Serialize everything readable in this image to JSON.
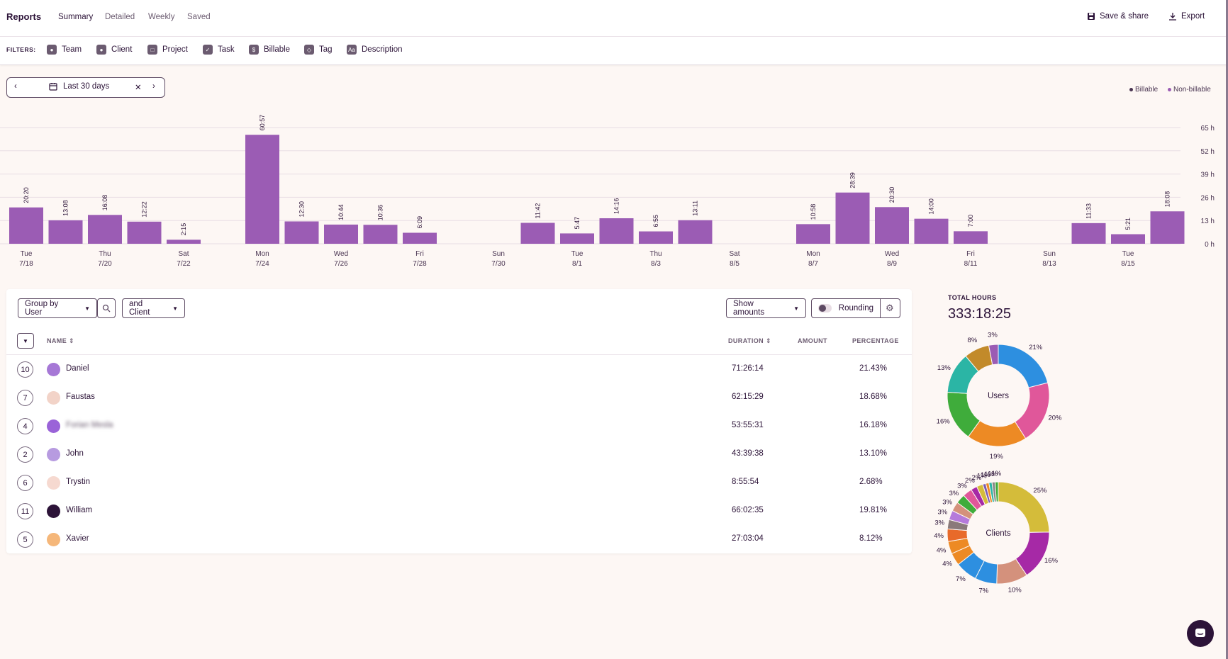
{
  "header": {
    "title": "Reports",
    "tabs": [
      "Summary",
      "Detailed",
      "Weekly",
      "Saved"
    ],
    "save_label": "Save & share",
    "export_label": "Export"
  },
  "filters": {
    "label": "FILTERS:",
    "items": [
      {
        "label": "Team",
        "icon": "team-icon"
      },
      {
        "label": "Client",
        "icon": "client-icon"
      },
      {
        "label": "Project",
        "icon": "project-icon"
      },
      {
        "label": "Task",
        "icon": "task-icon"
      },
      {
        "label": "Billable",
        "icon": "billable-icon"
      },
      {
        "label": "Tag",
        "icon": "tag-icon"
      },
      {
        "label": "Description",
        "icon": "description-icon"
      }
    ]
  },
  "date_range": {
    "label": "Last 30 days"
  },
  "legend": {
    "billable": "Billable",
    "non_billable": "Non-billable"
  },
  "colors": {
    "bar": "#9b5cb4",
    "accent": "#2c1338",
    "grid": "#e8dde4"
  },
  "chart_data": {
    "type": "bar",
    "y_unit": "h",
    "y_ticks": [
      "65 h",
      "52 h",
      "39 h",
      "26 h",
      "13 h",
      "0 h"
    ],
    "ylim": [
      0,
      65
    ],
    "days": [
      {
        "wd": "Tue",
        "date": "7/18",
        "label": "20:20",
        "hours": 20.33
      },
      {
        "wd": "",
        "date": "",
        "label": "13:08",
        "hours": 13.13
      },
      {
        "wd": "Thu",
        "date": "7/20",
        "label": "16:08",
        "hours": 16.13
      },
      {
        "wd": "",
        "date": "",
        "label": "12:22",
        "hours": 12.37
      },
      {
        "wd": "Sat",
        "date": "7/22",
        "label": "2:15",
        "hours": 2.25
      },
      {
        "wd": "",
        "date": "",
        "label": "",
        "hours": 0
      },
      {
        "wd": "Mon",
        "date": "7/24",
        "label": "60:57",
        "hours": 60.95
      },
      {
        "wd": "",
        "date": "",
        "label": "12:30",
        "hours": 12.5
      },
      {
        "wd": "Wed",
        "date": "7/26",
        "label": "10:44",
        "hours": 10.73
      },
      {
        "wd": "",
        "date": "",
        "label": "10:36",
        "hours": 10.6
      },
      {
        "wd": "Fri",
        "date": "7/28",
        "label": "6:09",
        "hours": 6.15
      },
      {
        "wd": "",
        "date": "",
        "label": "",
        "hours": 0
      },
      {
        "wd": "Sun",
        "date": "7/30",
        "label": "",
        "hours": 0
      },
      {
        "wd": "",
        "date": "",
        "label": "11:42",
        "hours": 11.7
      },
      {
        "wd": "Tue",
        "date": "8/1",
        "label": "5:47",
        "hours": 5.78
      },
      {
        "wd": "",
        "date": "",
        "label": "14:16",
        "hours": 14.27
      },
      {
        "wd": "Thu",
        "date": "8/3",
        "label": "6:55",
        "hours": 6.92
      },
      {
        "wd": "",
        "date": "",
        "label": "13:11",
        "hours": 13.18
      },
      {
        "wd": "Sat",
        "date": "8/5",
        "label": "",
        "hours": 0
      },
      {
        "wd": "",
        "date": "",
        "label": "",
        "hours": 0
      },
      {
        "wd": "Mon",
        "date": "8/7",
        "label": "10:58",
        "hours": 10.97
      },
      {
        "wd": "",
        "date": "",
        "label": "28:39",
        "hours": 28.65
      },
      {
        "wd": "Wed",
        "date": "8/9",
        "label": "20:30",
        "hours": 20.5
      },
      {
        "wd": "",
        "date": "",
        "label": "14:00",
        "hours": 14.0
      },
      {
        "wd": "Fri",
        "date": "8/11",
        "label": "7:00",
        "hours": 7.0
      },
      {
        "wd": "",
        "date": "",
        "label": "",
        "hours": 0
      },
      {
        "wd": "Sun",
        "date": "8/13",
        "label": "",
        "hours": 0
      },
      {
        "wd": "",
        "date": "",
        "label": "11:33",
        "hours": 11.55
      },
      {
        "wd": "Tue",
        "date": "8/15",
        "label": "5:21",
        "hours": 5.35
      },
      {
        "wd": "",
        "date": "",
        "label": "18:08",
        "hours": 18.13
      }
    ]
  },
  "table": {
    "group_by": "Group by User",
    "sub_group": "and Client",
    "show_amounts": "Show amounts",
    "rounding": "Rounding",
    "headers": {
      "name": "NAME",
      "duration": "DURATION",
      "amount": "AMOUNT",
      "percentage": "PERCENTAGE"
    },
    "rows": [
      {
        "count": "10",
        "name": "Daniel",
        "duration": "71:26:14",
        "percentage": "21.43%",
        "avatar": "#a678d6",
        "blurred": false
      },
      {
        "count": "7",
        "name": "Faustas",
        "duration": "62:15:29",
        "percentage": "18.68%",
        "avatar": "#f2d3c8",
        "blurred": false
      },
      {
        "count": "4",
        "name": "Forian Mesla",
        "duration": "53:55:31",
        "percentage": "16.18%",
        "avatar": "#9a63d8",
        "blurred": true
      },
      {
        "count": "2",
        "name": "John",
        "duration": "43:39:38",
        "percentage": "13.10%",
        "avatar": "#b79be0",
        "blurred": false
      },
      {
        "count": "6",
        "name": "Trystin",
        "duration": "8:55:54",
        "percentage": "2.68%",
        "avatar": "#f6d9d0",
        "blurred": false
      },
      {
        "count": "11",
        "name": "William",
        "duration": "66:02:35",
        "percentage": "19.81%",
        "avatar": "#2c1338",
        "blurred": false
      },
      {
        "count": "5",
        "name": "Xavier",
        "duration": "27:03:04",
        "percentage": "8.12%",
        "avatar": "#f5b77a",
        "blurred": false
      }
    ]
  },
  "summary": {
    "total_label": "TOTAL HOURS",
    "total_value": "333:18:25"
  },
  "users_donut": {
    "center": "Users",
    "slices": [
      {
        "label": "21%",
        "value": 21,
        "color": "#2d8fe0"
      },
      {
        "label": "20%",
        "value": 20,
        "color": "#e0579a"
      },
      {
        "label": "19%",
        "value": 19,
        "color": "#ed8a24"
      },
      {
        "label": "16%",
        "value": 16,
        "color": "#3fac3b"
      },
      {
        "label": "13%",
        "value": 13,
        "color": "#2bb5a5"
      },
      {
        "label": "8%",
        "value": 8,
        "color": "#c28a2a"
      },
      {
        "label": "3%",
        "value": 3,
        "color": "#9b5cb4"
      }
    ]
  },
  "clients_donut": {
    "center": "Clients",
    "slices": [
      {
        "label": "25%",
        "value": 25,
        "color": "#d4bc3a"
      },
      {
        "label": "16%",
        "value": 16,
        "color": "#a629a6"
      },
      {
        "label": "10%",
        "value": 10,
        "color": "#d4917c"
      },
      {
        "label": "7%",
        "value": 7,
        "color": "#2d8fe0"
      },
      {
        "label": "7%",
        "value": 7,
        "color": "#2d8fe0"
      },
      {
        "label": "4%",
        "value": 4,
        "color": "#ed8a24"
      },
      {
        "label": "4%",
        "value": 4,
        "color": "#ed8a24"
      },
      {
        "label": "4%",
        "value": 4,
        "color": "#e86a2a"
      },
      {
        "label": "3%",
        "value": 3,
        "color": "#8a7a7a"
      },
      {
        "label": "3%",
        "value": 3,
        "color": "#b57adb"
      },
      {
        "label": "3%",
        "value": 3,
        "color": "#d4917c"
      },
      {
        "label": "3%",
        "value": 3,
        "color": "#3fac3b"
      },
      {
        "label": "3%",
        "value": 3,
        "color": "#e0579a"
      },
      {
        "label": "2%",
        "value": 2,
        "color": "#a629a6"
      },
      {
        "label": "2%",
        "value": 2,
        "color": "#d4bc3a"
      },
      {
        "label": "1%",
        "value": 1,
        "color": "#7a5cb4"
      },
      {
        "label": "1%",
        "value": 1,
        "color": "#ed8a24"
      },
      {
        "label": "1%",
        "value": 1,
        "color": "#2bb5a5"
      },
      {
        "label": "1%",
        "value": 1,
        "color": "#888888"
      },
      {
        "label": "1%",
        "value": 1,
        "color": "#3fac3b"
      }
    ]
  }
}
